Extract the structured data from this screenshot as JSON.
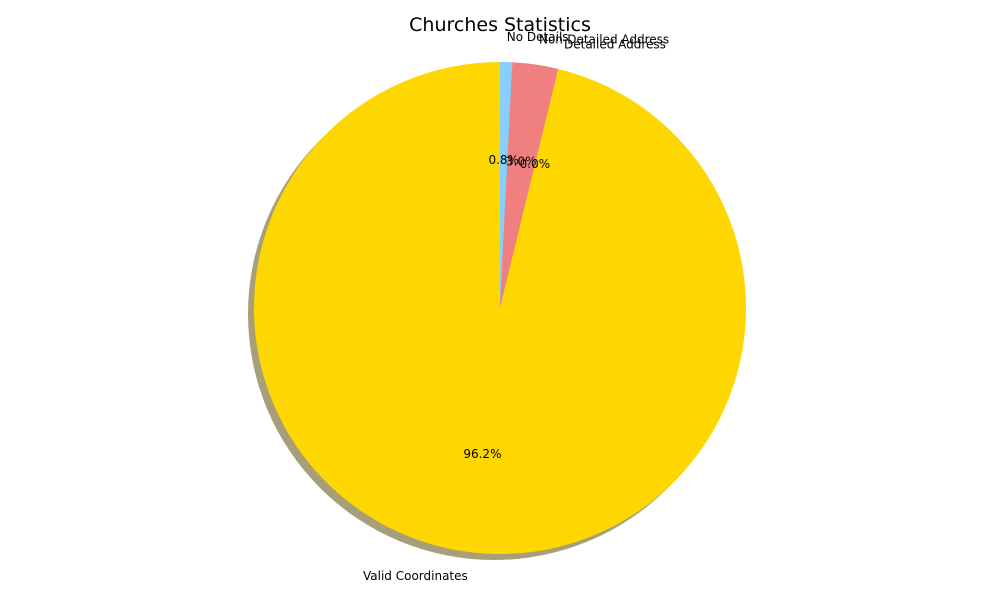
{
  "chart_data": {
    "type": "pie",
    "title": "Churches Statistics",
    "labels": [
      "No Details",
      "Non-Detailed Address",
      "Detailed Address",
      "Valid Coordinates"
    ],
    "values": [
      0.8,
      3.0,
      0.0,
      96.2
    ],
    "value_labels": [
      "0.8%",
      "3.0%",
      "0.0%",
      "96.2%"
    ],
    "colors": [
      "#87CEFA",
      "#F08080",
      "#90EE90",
      "#FFD700"
    ],
    "start_angle_deg": 90,
    "direction": "clockwise",
    "shadow": true,
    "shadow_color": "#A69F7A",
    "legend": "none"
  }
}
